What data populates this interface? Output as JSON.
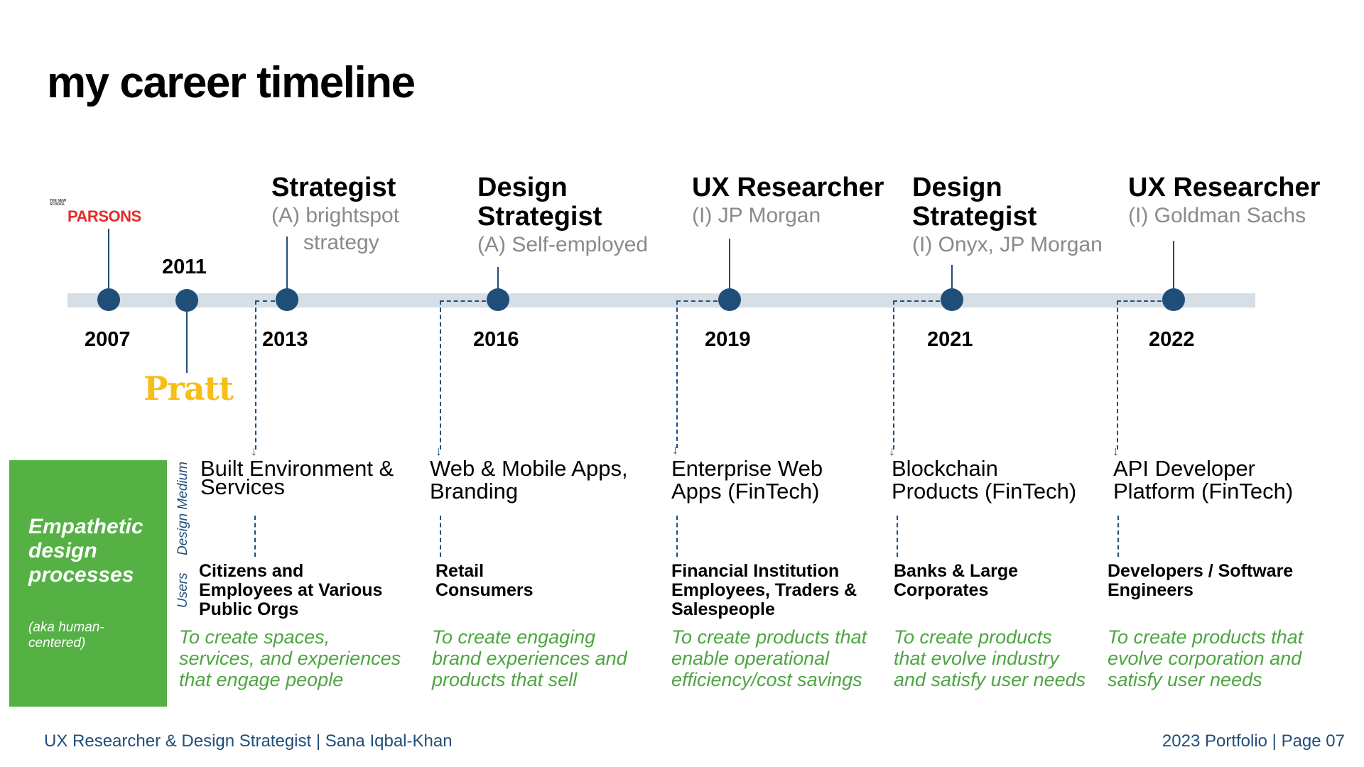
{
  "page": {
    "title": "my career timeline"
  },
  "logos": {
    "parsons_small": "THE NEW SCHOOL",
    "parsons": "PARSONS",
    "pratt": "Pratt"
  },
  "years": {
    "y2007": "2007",
    "y2011": "2011",
    "y2013": "2013",
    "y2016": "2016",
    "y2019": "2019",
    "y2021": "2021",
    "y2022": "2022"
  },
  "roles": [
    {
      "title_l1": "Strategist",
      "title_l2": "",
      "org_l1": "(A) brightspot",
      "org_l2": "strategy"
    },
    {
      "title_l1": "Design",
      "title_l2": "Strategist",
      "org_l1": "(A) Self-employed",
      "org_l2": ""
    },
    {
      "title_l1": "UX Researcher",
      "title_l2": "",
      "org_l1": "(I) JP Morgan",
      "org_l2": ""
    },
    {
      "title_l1": "Design",
      "title_l2": "Strategist",
      "org_l1": "(I) Onyx, JP Morgan",
      "org_l2": ""
    },
    {
      "title_l1": "UX Researcher",
      "title_l2": "",
      "org_l1": "(I) Goldman Sachs",
      "org_l2": ""
    }
  ],
  "panel": {
    "heading_l1": "Empathetic",
    "heading_l2": "design",
    "heading_l3": "processes",
    "note_l1": "(aka human-",
    "note_l2": "centered)"
  },
  "side_labels": {
    "medium": "Design Medium",
    "users": "Users"
  },
  "columns": [
    {
      "medium_l1": "Built Environment &",
      "medium_l2": "Services",
      "users_l1": "Citizens and",
      "users_l2": "Employees at Various",
      "users_l3": "Public Orgs",
      "goal_l1": "To create spaces,",
      "goal_l2": "services, and experiences",
      "goal_l3": "that engage people"
    },
    {
      "medium_l1": "Web & Mobile Apps,",
      "medium_l2": "Branding",
      "users_l1": "Retail",
      "users_l2": "Consumers",
      "users_l3": "",
      "goal_l1": "To create engaging",
      "goal_l2": "brand experiences and",
      "goal_l3": "products that sell"
    },
    {
      "medium_l1": "Enterprise Web",
      "medium_l2": "Apps (FinTech)",
      "users_l1": "Financial Institution",
      "users_l2": "Employees, Traders &",
      "users_l3": "Salespeople",
      "goal_l1": "To create products that",
      "goal_l2": "enable operational",
      "goal_l3": "efficiency/cost savings"
    },
    {
      "medium_l1": "Blockchain",
      "medium_l2": "Products (FinTech)",
      "users_l1": "Banks & Large",
      "users_l2": "Corporates",
      "users_l3": "",
      "goal_l1": "To create products",
      "goal_l2": "that evolve industry",
      "goal_l3": "and satisfy user needs"
    },
    {
      "medium_l1": "API Developer",
      "medium_l2": "Platform (FinTech)",
      "users_l1": "Developers / Software",
      "users_l2": "Engineers",
      "users_l3": "",
      "goal_l1": "To create products that",
      "goal_l2": "evolve corporation and",
      "goal_l3": "satisfy user needs"
    }
  ],
  "footer": {
    "left": "UX Researcher & Design Strategist | Sana Iqbal-Khan",
    "right": "2023 Portfolio | Page 07"
  },
  "colors": {
    "navy": "#1f4e79",
    "green": "#55b144",
    "goal_green": "#4ea542",
    "bar": "#d6dee6"
  }
}
